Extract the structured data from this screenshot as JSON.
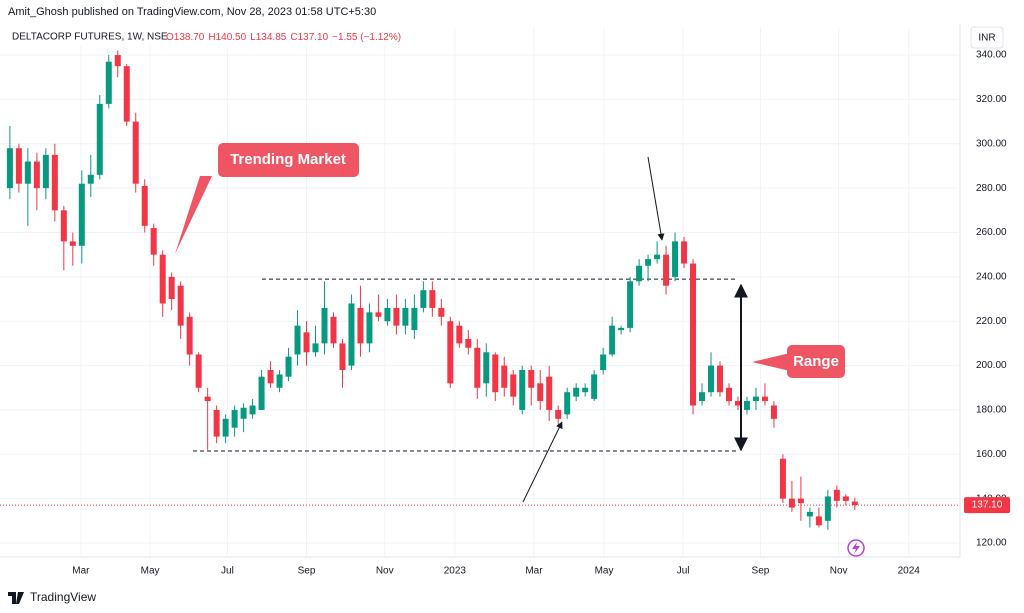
{
  "header": "Amit_Ghosh published on TradingView.com, Nov 28, 2023 01:58 UTC+5:30",
  "footer": "TradingView",
  "chart_data": {
    "type": "candlestick",
    "symbol": "DELTACORP FUTURES, 1W, NSE",
    "ohlc_text": [
      "O138.70",
      "H140.50",
      "L134.85",
      "C137.10",
      "−1.55 (−1.12%)"
    ],
    "currency": "INR",
    "annotations": [
      "Trending Market",
      "Range"
    ],
    "up_color": "#089981",
    "down_color": "#f23645",
    "grid": true,
    "open": [
      280,
      298,
      282,
      292,
      280,
      295,
      270,
      256,
      254,
      282,
      286,
      318,
      340,
      335,
      310,
      281,
      262,
      250,
      240,
      236,
      222,
      205,
      186,
      180,
      168,
      172,
      176,
      178,
      180,
      198,
      190,
      195,
      205,
      215,
      206,
      210,
      222,
      210,
      200,
      226,
      210,
      224,
      220,
      226,
      218,
      216,
      226,
      234,
      226,
      220,
      218,
      212,
      208,
      192,
      205,
      200,
      196,
      180,
      198,
      192,
      195,
      180,
      178,
      186,
      188,
      185,
      198,
      205,
      216,
      217,
      238,
      245,
      248,
      250,
      240,
      256,
      246,
      184,
      188,
      200,
      190,
      184,
      180,
      184,
      186,
      182,
      158,
      140,
      140,
      132,
      132,
      130,
      144,
      141,
      138.7
    ],
    "high": [
      308,
      300,
      298,
      296,
      298,
      300,
      272,
      260,
      288,
      295,
      322,
      340,
      342,
      336,
      314,
      284,
      264,
      252,
      242,
      238,
      224,
      206,
      190,
      182,
      178,
      182,
      183,
      185,
      198,
      202,
      198,
      208,
      225,
      220,
      218,
      238,
      224,
      212,
      232,
      236,
      228,
      232,
      230,
      232,
      230,
      232,
      238,
      238,
      230,
      222,
      220,
      216,
      212,
      210,
      206,
      204,
      198,
      200,
      200,
      198,
      200,
      182,
      190,
      192,
      192,
      198,
      208,
      222,
      218,
      240,
      248,
      250,
      256,
      254,
      260,
      258,
      248,
      192,
      206,
      202,
      192,
      186,
      186,
      190,
      192,
      184,
      160,
      148,
      150,
      136,
      136,
      144,
      146,
      142,
      140.5
    ],
    "low": [
      275,
      278,
      263,
      270,
      275,
      265,
      243,
      245,
      246,
      276,
      284,
      316,
      330,
      308,
      278,
      260,
      245,
      222,
      225,
      212,
      200,
      188,
      162,
      165,
      165,
      168,
      170,
      176,
      180,
      190,
      188,
      193,
      200,
      200,
      204,
      205,
      208,
      190,
      198,
      204,
      206,
      220,
      218,
      214,
      214,
      212,
      224,
      222,
      218,
      190,
      208,
      205,
      185,
      186,
      184,
      186,
      182,
      178,
      182,
      180,
      175,
      173,
      176,
      184,
      186,
      184,
      196,
      204,
      214,
      215,
      236,
      238,
      246,
      232,
      238,
      244,
      178,
      182,
      186,
      186,
      182,
      180,
      178,
      180,
      182,
      172,
      138,
      134,
      130,
      127,
      127,
      126,
      136,
      137,
      134.85
    ],
    "close": [
      298,
      282,
      292,
      280,
      295,
      270,
      256,
      254,
      282,
      286,
      318,
      337,
      335,
      310,
      282,
      263,
      250,
      228,
      230,
      218,
      205,
      190,
      184,
      168,
      176,
      180,
      181,
      182,
      195,
      192,
      196,
      204,
      218,
      206,
      210,
      226,
      210,
      198,
      228,
      210,
      224,
      222,
      226,
      218,
      226,
      226,
      234,
      226,
      222,
      192,
      210,
      208,
      190,
      206,
      188,
      190,
      186,
      198,
      190,
      184,
      180,
      176,
      188,
      190,
      190,
      196,
      205,
      218,
      217,
      238,
      245,
      248,
      250,
      236,
      256,
      246,
      182,
      188,
      200,
      188,
      184,
      182,
      184,
      186,
      184,
      176,
      140,
      136,
      138,
      134,
      128,
      141,
      139,
      139,
      137.1
    ],
    "xlim": [
      -1.1,
      105.7
    ],
    "xticks": [
      {
        "value": 7.9,
        "label": "Mar"
      },
      {
        "value": 15.6,
        "label": "May"
      },
      {
        "value": 24.2,
        "label": "Jul"
      },
      {
        "value": 33.0,
        "label": "Sep"
      },
      {
        "value": 41.7,
        "label": "Nov"
      },
      {
        "value": 49.5,
        "label": "2023"
      },
      {
        "value": 58.3,
        "label": "Mar"
      },
      {
        "value": 66.1,
        "label": "May"
      },
      {
        "value": 74.9,
        "label": "Jul"
      },
      {
        "value": 83.5,
        "label": "Sep"
      },
      {
        "value": 92.2,
        "label": "Nov"
      },
      {
        "value": 100.0,
        "label": "2024"
      }
    ],
    "ylim": [
      113.7,
      352.2
    ],
    "yticks": [
      {
        "value": 120,
        "label": "120.00"
      },
      {
        "value": 140,
        "label": "140.00"
      },
      {
        "value": 160,
        "label": "160.00"
      },
      {
        "value": 180,
        "label": "180.00"
      },
      {
        "value": 200,
        "label": "200.00"
      },
      {
        "value": 220,
        "label": "220.00"
      },
      {
        "value": 240,
        "label": "240.00"
      },
      {
        "value": 260,
        "label": "260.00"
      },
      {
        "value": 280,
        "label": "280.00"
      },
      {
        "value": 300,
        "label": "300.00"
      },
      {
        "value": 320,
        "label": "320.00"
      },
      {
        "value": 340,
        "label": "340.00"
      }
    ],
    "last_price": {
      "value": 137.1,
      "label": "137.10"
    },
    "range_levels": [
      239,
      161.5
    ]
  }
}
